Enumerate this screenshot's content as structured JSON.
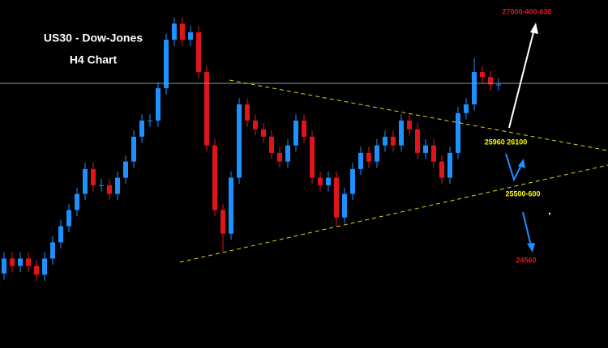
{
  "chart_data": {
    "type": "candlestick",
    "title": "US30 - Dow-Jones",
    "subtitle": "H4 Chart",
    "up_color": "#1e90ff",
    "down_color": "#e0151b",
    "ylim": [
      24300,
      27100
    ],
    "open": [
      24900,
      25020,
      24960,
      25020,
      24960,
      24890,
      25020,
      25150,
      25280,
      25410,
      25540,
      25740,
      25610,
      25610,
      25540,
      25670,
      25800,
      26000,
      26130,
      26130,
      26390,
      26780,
      26910,
      26780,
      26840,
      26520,
      25930,
      25410,
      25220,
      25670,
      26260,
      26130,
      26060,
      26000,
      25870,
      25800,
      25930,
      26130,
      26000,
      25670,
      25610,
      25670,
      25350,
      25540,
      25740,
      25870,
      25800,
      25930,
      26000,
      25930,
      26130,
      26060,
      25870,
      25930,
      25800,
      25670,
      25870,
      26190,
      26260,
      26520,
      26480,
      26420
    ],
    "high": [
      25070,
      25070,
      25070,
      25070,
      25010,
      25070,
      25200,
      25330,
      25460,
      25590,
      25790,
      25790,
      25660,
      25660,
      25720,
      25850,
      26050,
      26180,
      26180,
      26440,
      26830,
      26960,
      26960,
      26890,
      26890,
      26570,
      25980,
      25460,
      25720,
      26310,
      26310,
      26180,
      26110,
      26050,
      25920,
      25980,
      26180,
      26180,
      26050,
      25720,
      25720,
      25720,
      25590,
      25790,
      25920,
      25920,
      25980,
      26050,
      26050,
      26180,
      26180,
      26110,
      25980,
      25980,
      25850,
      25920,
      26240,
      26310,
      26630,
      26570,
      26530,
      26470
    ],
    "low": [
      24850,
      24910,
      24910,
      24910,
      24840,
      24840,
      24970,
      25100,
      25230,
      25360,
      25490,
      25560,
      25560,
      25490,
      25490,
      25620,
      25750,
      25950,
      26080,
      26080,
      26340,
      26730,
      26730,
      26730,
      26470,
      25880,
      25360,
      25080,
      25170,
      25620,
      26080,
      26010,
      25950,
      25820,
      25750,
      25750,
      25880,
      25950,
      25620,
      25560,
      25560,
      25280,
      25300,
      25490,
      25690,
      25750,
      25750,
      25880,
      25880,
      25880,
      26010,
      25820,
      25820,
      25750,
      25620,
      25620,
      25820,
      26140,
      26210,
      26430,
      26370,
      26370
    ],
    "close": [
      25020,
      24960,
      25020,
      24960,
      24890,
      25020,
      25150,
      25280,
      25410,
      25540,
      25740,
      25610,
      25610,
      25540,
      25670,
      25800,
      26000,
      26130,
      26130,
      26390,
      26780,
      26910,
      26780,
      26840,
      26520,
      25930,
      25410,
      25220,
      25670,
      26260,
      26130,
      26060,
      26000,
      25870,
      25800,
      25930,
      26130,
      26000,
      25670,
      25610,
      25670,
      25350,
      25540,
      25740,
      25870,
      25800,
      25930,
      26000,
      25930,
      26130,
      26060,
      25870,
      25930,
      25800,
      25670,
      25870,
      26190,
      26260,
      26520,
      26480,
      26420,
      26420
    ],
    "annotations": [
      {
        "text": "27000-400-630",
        "color": "#e0151b"
      },
      {
        "text": "25960 26100",
        "color": "#ffff00"
      },
      {
        "text": "25500-600",
        "color": "#ffff00"
      },
      {
        "text": "24560",
        "color": "#e0151b"
      }
    ]
  }
}
